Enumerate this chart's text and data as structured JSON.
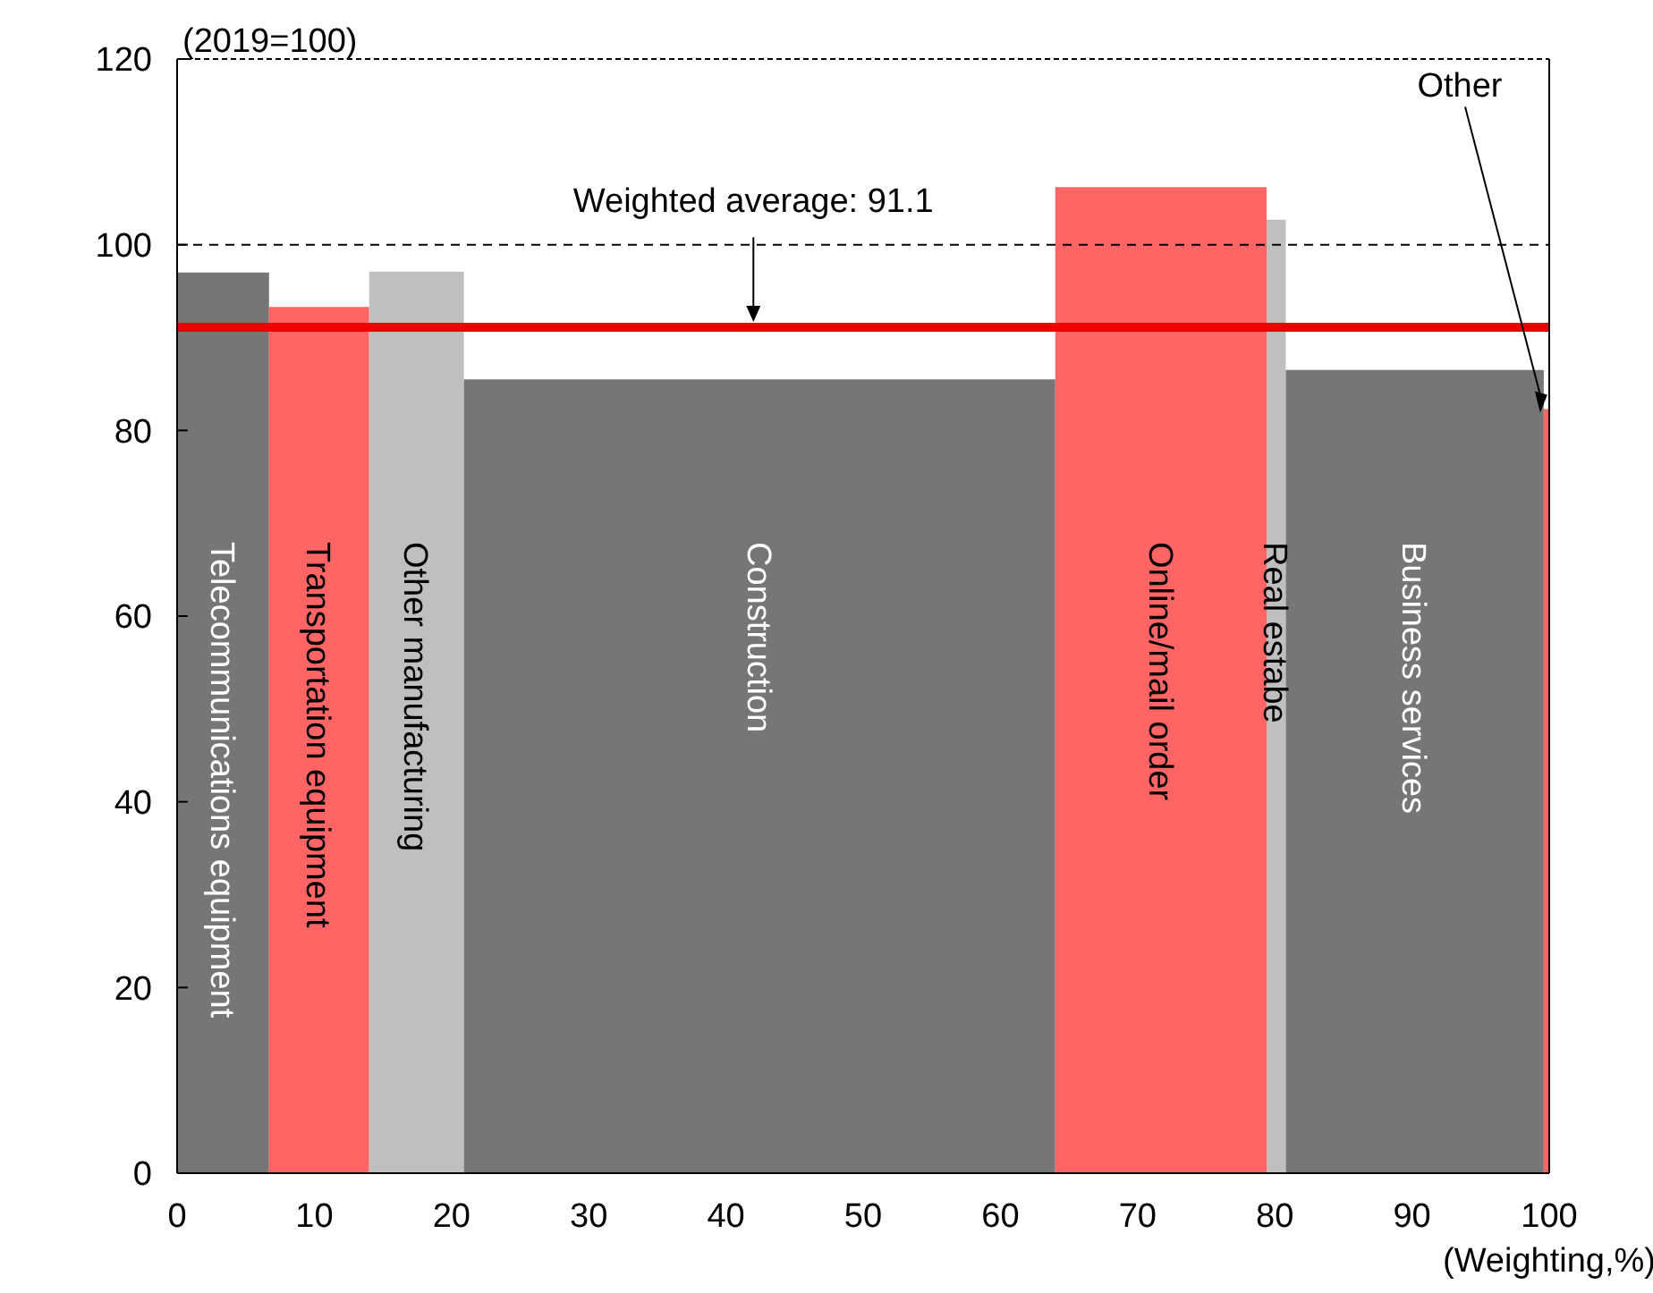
{
  "chart_data": {
    "type": "area",
    "xlabel": "(Weighting,%)",
    "annotations": [
      "(2019=100)"
    ],
    "xlim": [
      0,
      100
    ],
    "xticks": [
      0,
      10,
      20,
      30,
      40,
      50,
      60,
      70,
      80,
      90,
      100
    ],
    "ylim": [
      0,
      120
    ],
    "yticks": [
      0,
      20,
      40,
      60,
      80,
      100,
      120
    ],
    "grid": false,
    "series": [
      {
        "name": "Telecommunications equipment",
        "color": "#767676",
        "x": [
          0,
          6.7
        ],
        "values": [
          97.0,
          97.0
        ]
      },
      {
        "name": "Transportation equipment",
        "color": "#ff6565",
        "x": [
          6.7,
          14.0
        ],
        "values": [
          93.3,
          93.3
        ]
      },
      {
        "name": "Other manufacturing",
        "color": "#bfbfbf",
        "x": [
          14.0,
          20.9
        ],
        "values": [
          97.1,
          97.1
        ]
      },
      {
        "name": "Construction",
        "color": "#767676",
        "x": [
          20.9,
          64.0
        ],
        "values": [
          85.5,
          85.5
        ]
      },
      {
        "name": "Online/mail order",
        "color": "#ff6565",
        "x": [
          64.0,
          79.4
        ],
        "values": [
          106.2,
          106.2
        ]
      },
      {
        "name": "Real estabe",
        "color": "#bfbfbf",
        "x": [
          79.4,
          80.8
        ],
        "values": [
          102.7,
          102.7
        ]
      },
      {
        "name": "Business services",
        "color": "#767676",
        "x": [
          80.8,
          99.6
        ],
        "values": [
          86.5,
          86.5
        ]
      },
      {
        "name": "Other",
        "color": "#ff6565",
        "x": [
          99.6,
          100
        ],
        "values": [
          82.3,
          82.3
        ]
      }
    ],
    "ref_lines": [
      {
        "axis": "y",
        "value": 100,
        "color": "#000000",
        "line_style": "dashed"
      },
      {
        "axis": "y",
        "value": 91.1,
        "label": "Weighted average: 91.1",
        "color": "#ee0000",
        "line_style": "solid"
      }
    ]
  }
}
